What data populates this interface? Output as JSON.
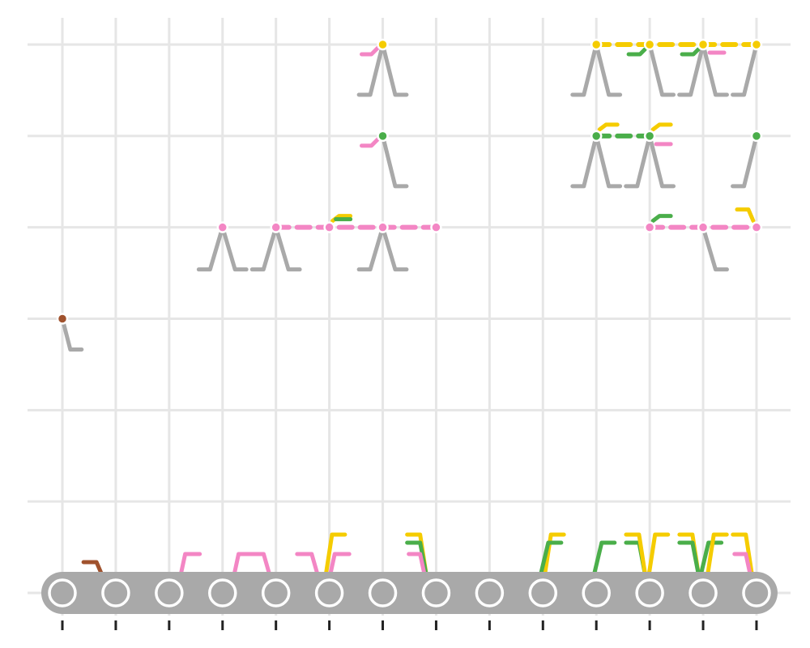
{
  "chart_data": {
    "type": "scatter",
    "title": "",
    "xlabel": "",
    "ylabel": "",
    "x_ticks": [
      1,
      2,
      3,
      4,
      5,
      6,
      7,
      8,
      9,
      10,
      11,
      12,
      13,
      14
    ],
    "y_ticks": [
      0,
      1,
      2,
      3,
      4,
      5,
      6
    ],
    "xlim": [
      0.35,
      14.65
    ],
    "ylim": [
      -0.3,
      6.3
    ],
    "grid": true,
    "legend": "none",
    "colors": {
      "pink": "#f386c4",
      "yellow": "#f5cc00",
      "green": "#4aae4a",
      "brown": "#a0522d",
      "gray": "#a9a9a9",
      "tick": "#222222",
      "grid": "#e6e6e6"
    },
    "conveyor": {
      "y": 0,
      "rollers": [
        1,
        2,
        3,
        4,
        5,
        6,
        7,
        8,
        9,
        10,
        11,
        12,
        13,
        14
      ]
    },
    "nodes": [
      {
        "x": 1,
        "y": 3,
        "color": "brown"
      },
      {
        "x": 4,
        "y": 4,
        "color": "pink"
      },
      {
        "x": 5,
        "y": 4,
        "color": "pink"
      },
      {
        "x": 6,
        "y": 4,
        "color": "pink"
      },
      {
        "x": 7,
        "y": 4,
        "color": "pink"
      },
      {
        "x": 8,
        "y": 4,
        "color": "pink"
      },
      {
        "x": 12,
        "y": 4,
        "color": "pink"
      },
      {
        "x": 13,
        "y": 4,
        "color": "pink"
      },
      {
        "x": 14,
        "y": 4,
        "color": "pink"
      },
      {
        "x": 7,
        "y": 5,
        "color": "green"
      },
      {
        "x": 11,
        "y": 5,
        "color": "green"
      },
      {
        "x": 12,
        "y": 5,
        "color": "green"
      },
      {
        "x": 14,
        "y": 5,
        "color": "green"
      },
      {
        "x": 7,
        "y": 6,
        "color": "yellow"
      },
      {
        "x": 11,
        "y": 6,
        "color": "yellow"
      },
      {
        "x": 12,
        "y": 6,
        "color": "yellow"
      },
      {
        "x": 13,
        "y": 6,
        "color": "yellow"
      },
      {
        "x": 14,
        "y": 6,
        "color": "yellow"
      }
    ],
    "gray_struts": [
      {
        "x": 1,
        "y": 3,
        "type": "right"
      },
      {
        "x": 4,
        "y": 4,
        "type": "both"
      },
      {
        "x": 5,
        "y": 4,
        "type": "both"
      },
      {
        "x": 7,
        "y": 4,
        "type": "both"
      },
      {
        "x": 13,
        "y": 4,
        "type": "right"
      },
      {
        "x": 7,
        "y": 5,
        "type": "right"
      },
      {
        "x": 11,
        "y": 5,
        "type": "both"
      },
      {
        "x": 12,
        "y": 5,
        "type": "both"
      },
      {
        "x": 14,
        "y": 5,
        "type": "left"
      },
      {
        "x": 7,
        "y": 6,
        "type": "both"
      },
      {
        "x": 11,
        "y": 6,
        "type": "both"
      },
      {
        "x": 12,
        "y": 6,
        "type": "right"
      },
      {
        "x": 13,
        "y": 6,
        "type": "both"
      },
      {
        "x": 14,
        "y": 6,
        "type": "left"
      }
    ],
    "dashed_links": [
      {
        "x1": 5,
        "x2": 8,
        "y": 4,
        "color": "pink"
      },
      {
        "x1": 12,
        "x2": 14,
        "y": 4,
        "color": "pink"
      },
      {
        "x1": 11,
        "x2": 12,
        "y": 5,
        "color": "green"
      },
      {
        "x1": 11,
        "x2": 14,
        "y": 6,
        "color": "yellow"
      }
    ],
    "hooks": [
      {
        "x": 7,
        "y": 6,
        "dir": "left",
        "color": "pink"
      },
      {
        "x": 7,
        "y": 5,
        "dir": "left",
        "color": "pink"
      },
      {
        "x": 6,
        "y": 4,
        "dir": "up",
        "color": "yellow"
      },
      {
        "x": 6,
        "y": 4,
        "dir": "up-short",
        "color": "green"
      },
      {
        "x": 11,
        "y": 5,
        "dir": "up",
        "color": "yellow"
      },
      {
        "x": 12,
        "y": 5,
        "dir": "up",
        "color": "yellow"
      },
      {
        "x": 12,
        "y": 5,
        "dir": "right",
        "color": "pink"
      },
      {
        "x": 12,
        "y": 4,
        "dir": "up",
        "color": "green"
      },
      {
        "x": 14,
        "y": 4,
        "dir": "up-left",
        "color": "yellow"
      },
      {
        "x": 12,
        "y": 6,
        "dir": "down-left",
        "color": "green"
      },
      {
        "x": 13,
        "y": 6,
        "dir": "down-left",
        "color": "green"
      },
      {
        "x": 13,
        "y": 6,
        "dir": "right",
        "color": "pink"
      }
    ],
    "bottom_markers": [
      {
        "x": 1.7,
        "color": "brown",
        "type": "brown-hook"
      },
      {
        "x": 3.3,
        "color": "pink",
        "type": "up"
      },
      {
        "x": 4.3,
        "color": "pink",
        "type": "up"
      },
      {
        "x": 4.8,
        "color": "pink",
        "type": "right-down"
      },
      {
        "x": 5.7,
        "color": "pink",
        "type": "right-down"
      },
      {
        "x": 6.05,
        "color": "yellow",
        "type": "tall-up"
      },
      {
        "x": 6.1,
        "color": "pink",
        "type": "up"
      },
      {
        "x": 7.7,
        "color": "yellow",
        "type": "tall-down"
      },
      {
        "x": 7.7,
        "color": "green",
        "type": "mid-down"
      },
      {
        "x": 7.7,
        "color": "pink",
        "type": "short-down"
      },
      {
        "x": 10.15,
        "color": "yellow",
        "type": "tall-up"
      },
      {
        "x": 10.1,
        "color": "green",
        "type": "mid-up"
      },
      {
        "x": 11.1,
        "color": "green",
        "type": "mid-up"
      },
      {
        "x": 11.8,
        "color": "green",
        "type": "mid-down"
      },
      {
        "x": 11.8,
        "color": "yellow",
        "type": "tall-down"
      },
      {
        "x": 12.1,
        "color": "yellow",
        "type": "tall-up"
      },
      {
        "x": 12.8,
        "color": "yellow",
        "type": "tall-down"
      },
      {
        "x": 12.8,
        "color": "green",
        "type": "mid-down"
      },
      {
        "x": 13.1,
        "color": "green",
        "type": "mid-up"
      },
      {
        "x": 13.2,
        "color": "yellow",
        "type": "tall-up"
      },
      {
        "x": 13.8,
        "color": "yellow",
        "type": "tall-down"
      },
      {
        "x": 13.8,
        "color": "pink",
        "type": "short-down"
      }
    ]
  }
}
